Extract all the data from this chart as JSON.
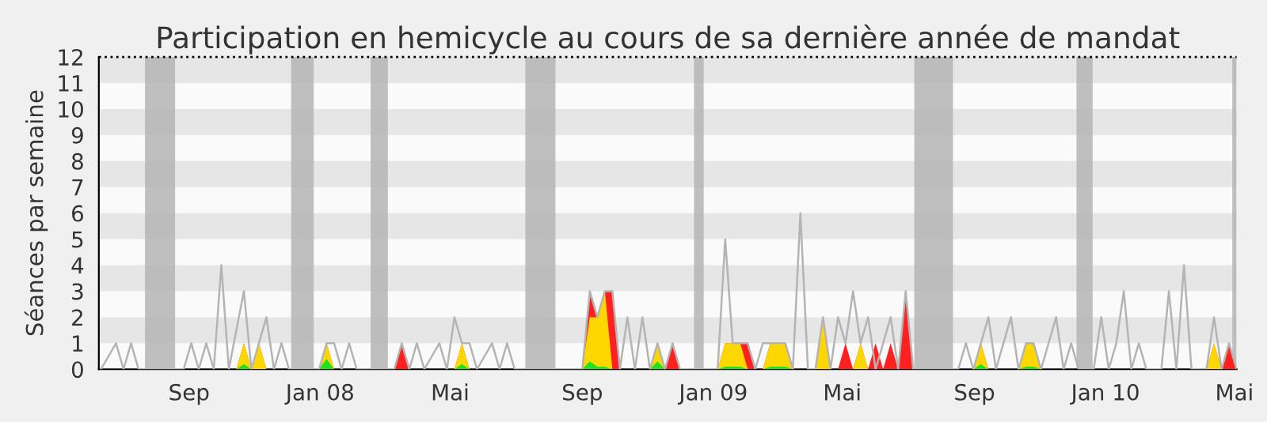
{
  "chart_data": {
    "type": "area",
    "title": "Participation en hemicycle au cours de sa dernière année de mandat",
    "ylabel": "Séances par semaine",
    "xlim": [
      "2007-06-09",
      "2010-05-03"
    ],
    "xticks": [
      {
        "value": "2007-09-01",
        "label": "Sep"
      },
      {
        "value": "2008-01-01",
        "label": "Jan 08"
      },
      {
        "value": "2008-05-01",
        "label": "Mai"
      },
      {
        "value": "2008-09-01",
        "label": "Sep"
      },
      {
        "value": "2009-01-01",
        "label": "Jan 09"
      },
      {
        "value": "2009-05-01",
        "label": "Mai"
      },
      {
        "value": "2009-09-01",
        "label": "Sep"
      },
      {
        "value": "2010-01-01",
        "label": "Jan 10"
      },
      {
        "value": "2010-05-01",
        "label": "Mai"
      }
    ],
    "ylim": [
      0,
      12
    ],
    "yticks": [
      0,
      1,
      2,
      3,
      4,
      5,
      6,
      7,
      8,
      9,
      10,
      11,
      12
    ],
    "ref_lines": [
      {
        "axis": "y",
        "value": 12,
        "color": "#000000",
        "line_style": "dotted"
      }
    ],
    "bands": [
      {
        "axis": "y",
        "from": 1,
        "to": 2,
        "color": "#e6e6e6"
      },
      {
        "axis": "y",
        "from": 3,
        "to": 4,
        "color": "#e6e6e6"
      },
      {
        "axis": "y",
        "from": 5,
        "to": 6,
        "color": "#e6e6e6"
      },
      {
        "axis": "y",
        "from": 7,
        "to": 8,
        "color": "#e6e6e6"
      },
      {
        "axis": "y",
        "from": 9,
        "to": 10,
        "color": "#e6e6e6"
      },
      {
        "axis": "y",
        "from": 11,
        "to": 12,
        "color": "#e6e6e6"
      },
      {
        "axis": "x",
        "from": "2007-07-22",
        "to": "2007-08-19",
        "color": "#b4b4b4"
      },
      {
        "axis": "x",
        "from": "2007-12-05",
        "to": "2007-12-26",
        "color": "#b4b4b4"
      },
      {
        "axis": "x",
        "from": "2008-02-17",
        "to": "2008-03-04",
        "color": "#b4b4b4"
      },
      {
        "axis": "x",
        "from": "2008-07-10",
        "to": "2008-08-07",
        "color": "#b4b4b4"
      },
      {
        "axis": "x",
        "from": "2008-12-14",
        "to": "2008-12-23",
        "color": "#b4b4b4"
      },
      {
        "axis": "x",
        "from": "2009-07-07",
        "to": "2009-08-12",
        "color": "#b4b4b4"
      },
      {
        "axis": "x",
        "from": "2009-12-05",
        "to": "2009-12-20",
        "color": "#b4b4b4"
      },
      {
        "axis": "x",
        "from": "2010-04-29",
        "to": "2010-05-03",
        "color": "#b4b4b4"
      }
    ],
    "series": [
      {
        "type": "line",
        "color": "#b4b4b4",
        "x": [
          "2007-06-11",
          "2007-06-25",
          "2007-07-02",
          "2007-07-09",
          "2007-07-16",
          "2007-08-27",
          "2007-09-03",
          "2007-09-10",
          "2007-09-17",
          "2007-09-24",
          "2007-10-01",
          "2007-10-08",
          "2007-10-22",
          "2007-10-29",
          "2007-11-05",
          "2007-11-12",
          "2007-11-19",
          "2007-11-26",
          "2007-12-03",
          "2007-12-31",
          "2008-01-07",
          "2008-01-14",
          "2008-01-21",
          "2008-01-28",
          "2008-02-04",
          "2008-03-10",
          "2008-03-17",
          "2008-03-24",
          "2008-03-31",
          "2008-04-07",
          "2008-04-21",
          "2008-04-28",
          "2008-05-05",
          "2008-05-12",
          "2008-05-19",
          "2008-05-26",
          "2008-06-09",
          "2008-06-16",
          "2008-06-23",
          "2008-06-30",
          "2008-09-01",
          "2008-09-08",
          "2008-09-15",
          "2008-09-22",
          "2008-09-29",
          "2008-10-06",
          "2008-10-13",
          "2008-10-20",
          "2008-10-27",
          "2008-11-03",
          "2008-11-10",
          "2008-11-17",
          "2008-11-24",
          "2008-12-01",
          "2009-01-05",
          "2009-01-12",
          "2009-01-19",
          "2009-01-26",
          "2009-02-02",
          "2009-02-09",
          "2009-02-16",
          "2009-02-23",
          "2009-03-02",
          "2009-03-09",
          "2009-03-16",
          "2009-03-23",
          "2009-03-30",
          "2009-04-06",
          "2009-04-13",
          "2009-04-20",
          "2009-04-27",
          "2009-05-04",
          "2009-05-11",
          "2009-05-18",
          "2009-05-25",
          "2009-06-01",
          "2009-06-08",
          "2009-06-15",
          "2009-06-22",
          "2009-06-29",
          "2009-07-06",
          "2009-08-17",
          "2009-08-24",
          "2009-08-31",
          "2009-09-07",
          "2009-09-14",
          "2009-09-21",
          "2009-10-05",
          "2009-10-12",
          "2009-10-19",
          "2009-10-26",
          "2009-11-02",
          "2009-11-16",
          "2009-11-23",
          "2009-11-30",
          "2009-12-07",
          "2009-12-21",
          "2009-12-28",
          "2010-01-04",
          "2010-01-11",
          "2010-01-18",
          "2010-01-25",
          "2010-02-01",
          "2010-02-08",
          "2010-02-22",
          "2010-03-01",
          "2010-03-08",
          "2010-03-15",
          "2010-03-22",
          "2010-04-05",
          "2010-04-12",
          "2010-04-19",
          "2010-04-26",
          "2010-05-03"
        ],
        "values": [
          0,
          1,
          0,
          1,
          0,
          0,
          1,
          0,
          1,
          0,
          4,
          0,
          3,
          0,
          1,
          2,
          0,
          1,
          0,
          0,
          1,
          1,
          0,
          1,
          0,
          0,
          1,
          0,
          1,
          0,
          1,
          0,
          2,
          1,
          1,
          0,
          1,
          0,
          1,
          0,
          0,
          3,
          2,
          3,
          3,
          0,
          2,
          0,
          2,
          0,
          1,
          0,
          1,
          0,
          0,
          5,
          1,
          1,
          1,
          0,
          1,
          1,
          1,
          1,
          0,
          6,
          0,
          0,
          2,
          0,
          2,
          1,
          3,
          1,
          2,
          0,
          1,
          2,
          0,
          3,
          0,
          0,
          1,
          0,
          1,
          2,
          0,
          2,
          0,
          1,
          1,
          0,
          2,
          0,
          1,
          0,
          0,
          2,
          0,
          1,
          3,
          0,
          1,
          0,
          0,
          3,
          0,
          4,
          0,
          0,
          2,
          0,
          1,
          0
        ]
      },
      {
        "color": "#ff2020",
        "x": [
          "2007-10-15",
          "2007-10-22",
          "2007-10-29",
          "2007-11-05",
          "2007-11-12",
          "2007-12-31",
          "2008-01-07",
          "2008-01-14",
          "2008-03-10",
          "2008-03-17",
          "2008-03-24",
          "2008-05-05",
          "2008-05-12",
          "2008-05-19",
          "2008-09-01",
          "2008-09-08",
          "2008-09-15",
          "2008-09-22",
          "2008-09-29",
          "2008-10-06",
          "2008-11-03",
          "2008-11-10",
          "2008-11-17",
          "2008-11-24",
          "2008-12-01",
          "2009-01-05",
          "2009-01-12",
          "2009-01-19",
          "2009-01-26",
          "2009-02-02",
          "2009-02-09",
          "2009-02-16",
          "2009-02-23",
          "2009-03-02",
          "2009-03-09",
          "2009-03-16",
          "2009-04-06",
          "2009-04-13",
          "2009-04-20",
          "2009-04-27",
          "2009-05-04",
          "2009-05-11",
          "2009-05-18",
          "2009-05-25",
          "2009-06-01",
          "2009-06-08",
          "2009-06-15",
          "2009-06-22",
          "2009-06-29",
          "2009-07-06",
          "2009-08-31",
          "2009-09-07",
          "2009-09-14",
          "2009-10-12",
          "2009-10-19",
          "2009-10-26",
          "2009-11-02",
          "2010-04-05",
          "2010-04-12",
          "2010-04-19",
          "2010-04-26",
          "2010-05-03"
        ],
        "values": [
          0,
          1,
          0,
          1,
          0,
          0,
          1,
          0,
          0,
          1,
          0,
          0,
          1,
          0,
          0,
          3,
          2,
          3,
          3,
          0,
          0,
          1,
          0,
          1,
          0,
          0,
          1,
          1,
          1,
          1,
          0,
          0,
          1,
          1,
          1,
          0,
          0,
          2,
          0,
          0,
          1,
          0,
          1,
          0,
          1,
          0,
          1,
          0,
          3,
          0,
          0,
          1,
          0,
          0,
          1,
          1,
          0,
          0,
          1,
          0,
          1,
          0
        ]
      },
      {
        "color": "#ffd700",
        "x": [
          "2007-10-15",
          "2007-10-22",
          "2007-10-29",
          "2007-11-05",
          "2007-11-12",
          "2007-12-31",
          "2008-01-07",
          "2008-01-14",
          "2008-05-05",
          "2008-05-12",
          "2008-05-19",
          "2008-09-01",
          "2008-09-08",
          "2008-09-15",
          "2008-09-22",
          "2008-09-29",
          "2008-11-03",
          "2008-11-10",
          "2008-11-17",
          "2009-01-05",
          "2009-01-12",
          "2009-01-19",
          "2009-01-26",
          "2009-02-02",
          "2009-02-16",
          "2009-02-23",
          "2009-03-02",
          "2009-03-09",
          "2009-03-16",
          "2009-04-06",
          "2009-04-13",
          "2009-04-20",
          "2009-05-11",
          "2009-05-18",
          "2009-05-25",
          "2009-08-31",
          "2009-09-07",
          "2009-09-14",
          "2009-10-12",
          "2009-10-19",
          "2009-10-26",
          "2009-11-02",
          "2010-04-05",
          "2010-04-12",
          "2010-04-19"
        ],
        "values": [
          0,
          1,
          0,
          1,
          0,
          0,
          1,
          0,
          0,
          1,
          0,
          0,
          2,
          2,
          3,
          0,
          0,
          1,
          0,
          0,
          1,
          1,
          1,
          0,
          0,
          1,
          1,
          1,
          0,
          0,
          2,
          0,
          0,
          1,
          0,
          0,
          1,
          0,
          0,
          1,
          1,
          0,
          0,
          1,
          0
        ]
      },
      {
        "color": "#22e022",
        "x": [
          "2007-10-15",
          "2007-10-22",
          "2007-10-29",
          "2007-12-31",
          "2008-01-07",
          "2008-01-14",
          "2008-05-05",
          "2008-05-12",
          "2008-05-19",
          "2008-09-01",
          "2008-09-08",
          "2008-09-15",
          "2008-09-22",
          "2008-09-29",
          "2008-11-03",
          "2008-11-10",
          "2008-11-17",
          "2009-01-05",
          "2009-01-12",
          "2009-01-19",
          "2009-01-26",
          "2009-02-02",
          "2009-02-16",
          "2009-02-23",
          "2009-03-02",
          "2009-03-09",
          "2009-03-16",
          "2009-08-31",
          "2009-09-07",
          "2009-09-14",
          "2009-10-12",
          "2009-10-19",
          "2009-10-26",
          "2009-11-02"
        ],
        "values": [
          0,
          0.2,
          0,
          0,
          0.4,
          0,
          0,
          0.2,
          0,
          0,
          0.3,
          0.1,
          0.1,
          0,
          0,
          0.3,
          0,
          0,
          0.1,
          0.1,
          0.1,
          0,
          0,
          0.1,
          0.1,
          0.1,
          0,
          0,
          0.2,
          0,
          0,
          0.1,
          0.1,
          0
        ]
      }
    ]
  }
}
